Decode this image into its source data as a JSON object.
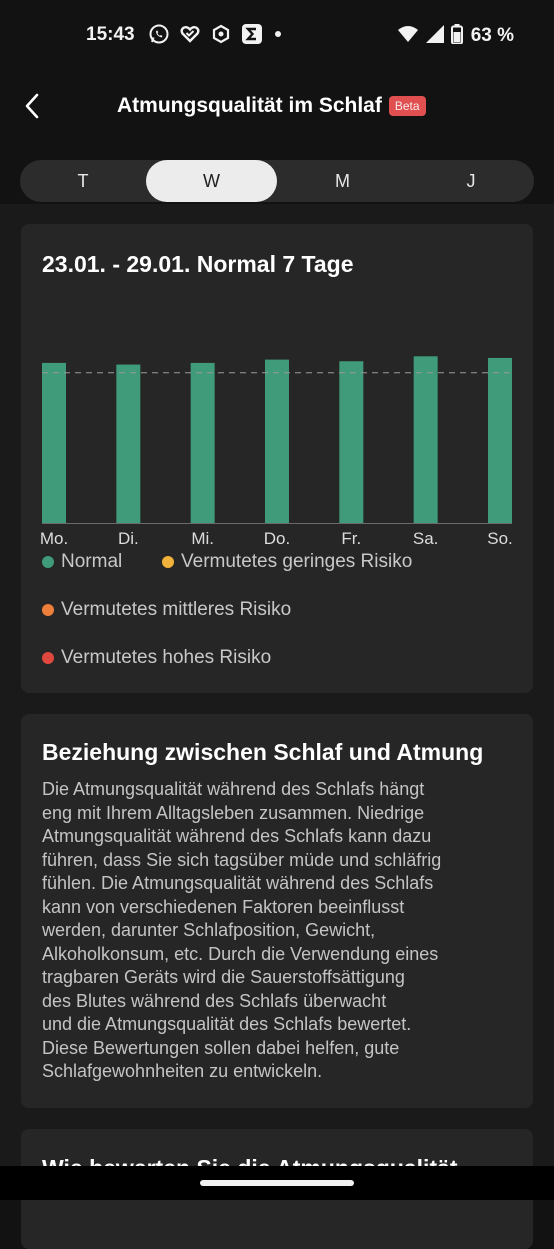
{
  "status_bar": {
    "time": "15:43",
    "battery": "63 %",
    "icons": [
      "whatsapp-icon",
      "heart-icon",
      "hexagon-icon",
      "sigma-icon",
      "dot-icon",
      "wifi-icon",
      "signal-icon",
      "battery-icon"
    ]
  },
  "header": {
    "title": "Atmungsqualität im Schlaf",
    "badge": "Beta",
    "back_icon": "chevron-left-icon"
  },
  "tabs": [
    {
      "label": "T",
      "active": false
    },
    {
      "label": "W",
      "active": true
    },
    {
      "label": "M",
      "active": false
    },
    {
      "label": "J",
      "active": false
    }
  ],
  "chart_card": {
    "title": "23.01. - 29.01. Normal 7 Tage"
  },
  "chart_data": {
    "type": "bar",
    "categories": [
      "Mo.",
      "Di.",
      "Mi.",
      "Do.",
      "Fr.",
      "Sa.",
      "So."
    ],
    "values": [
      97,
      96,
      97,
      99,
      98,
      101,
      100
    ],
    "ylim": [
      0,
      103
    ],
    "reference_line": 91,
    "bar_color": "#3f9b79",
    "grid": false
  },
  "legend": [
    {
      "label": "Normal",
      "color": "#3f9b79"
    },
    {
      "label": "Vermutetes geringes Risiko",
      "color": "#f2b13a"
    },
    {
      "label": "Vermutetes mittleres Risiko",
      "color": "#ee7f3b"
    },
    {
      "label": "Vermutetes hohes Risiko",
      "color": "#e0473f"
    }
  ],
  "info_card": {
    "title": "Beziehung zwischen Schlaf und Atmung",
    "lines": [
      "Die Atmungsqualität während des Schlafs hängt",
      "eng mit Ihrem Alltagsleben zusammen. Niedrige",
      "Atmungsqualität während des Schlafs kann dazu",
      "führen, dass Sie sich tagsüber müde und schläfrig",
      "fühlen. Die Atmungsqualität während des Schlafs",
      "kann von verschiedenen Faktoren beeinflusst",
      "werden, darunter Schlafposition, Gewicht,",
      "Alkoholkonsum, etc. Durch die Verwendung eines",
      "tragbaren Geräts wird die Sauerstoffsättigung",
      "des Blutes während des Schlafs überwacht",
      "und die Atmungsqualität des Schlafs bewertet.",
      "Diese Bewertungen sollen dabei helfen, gute",
      "Schlafgewohnheiten zu entwickeln."
    ]
  },
  "next_card": {
    "title": "Wie bewerten Sie die Atmungsqualität"
  }
}
